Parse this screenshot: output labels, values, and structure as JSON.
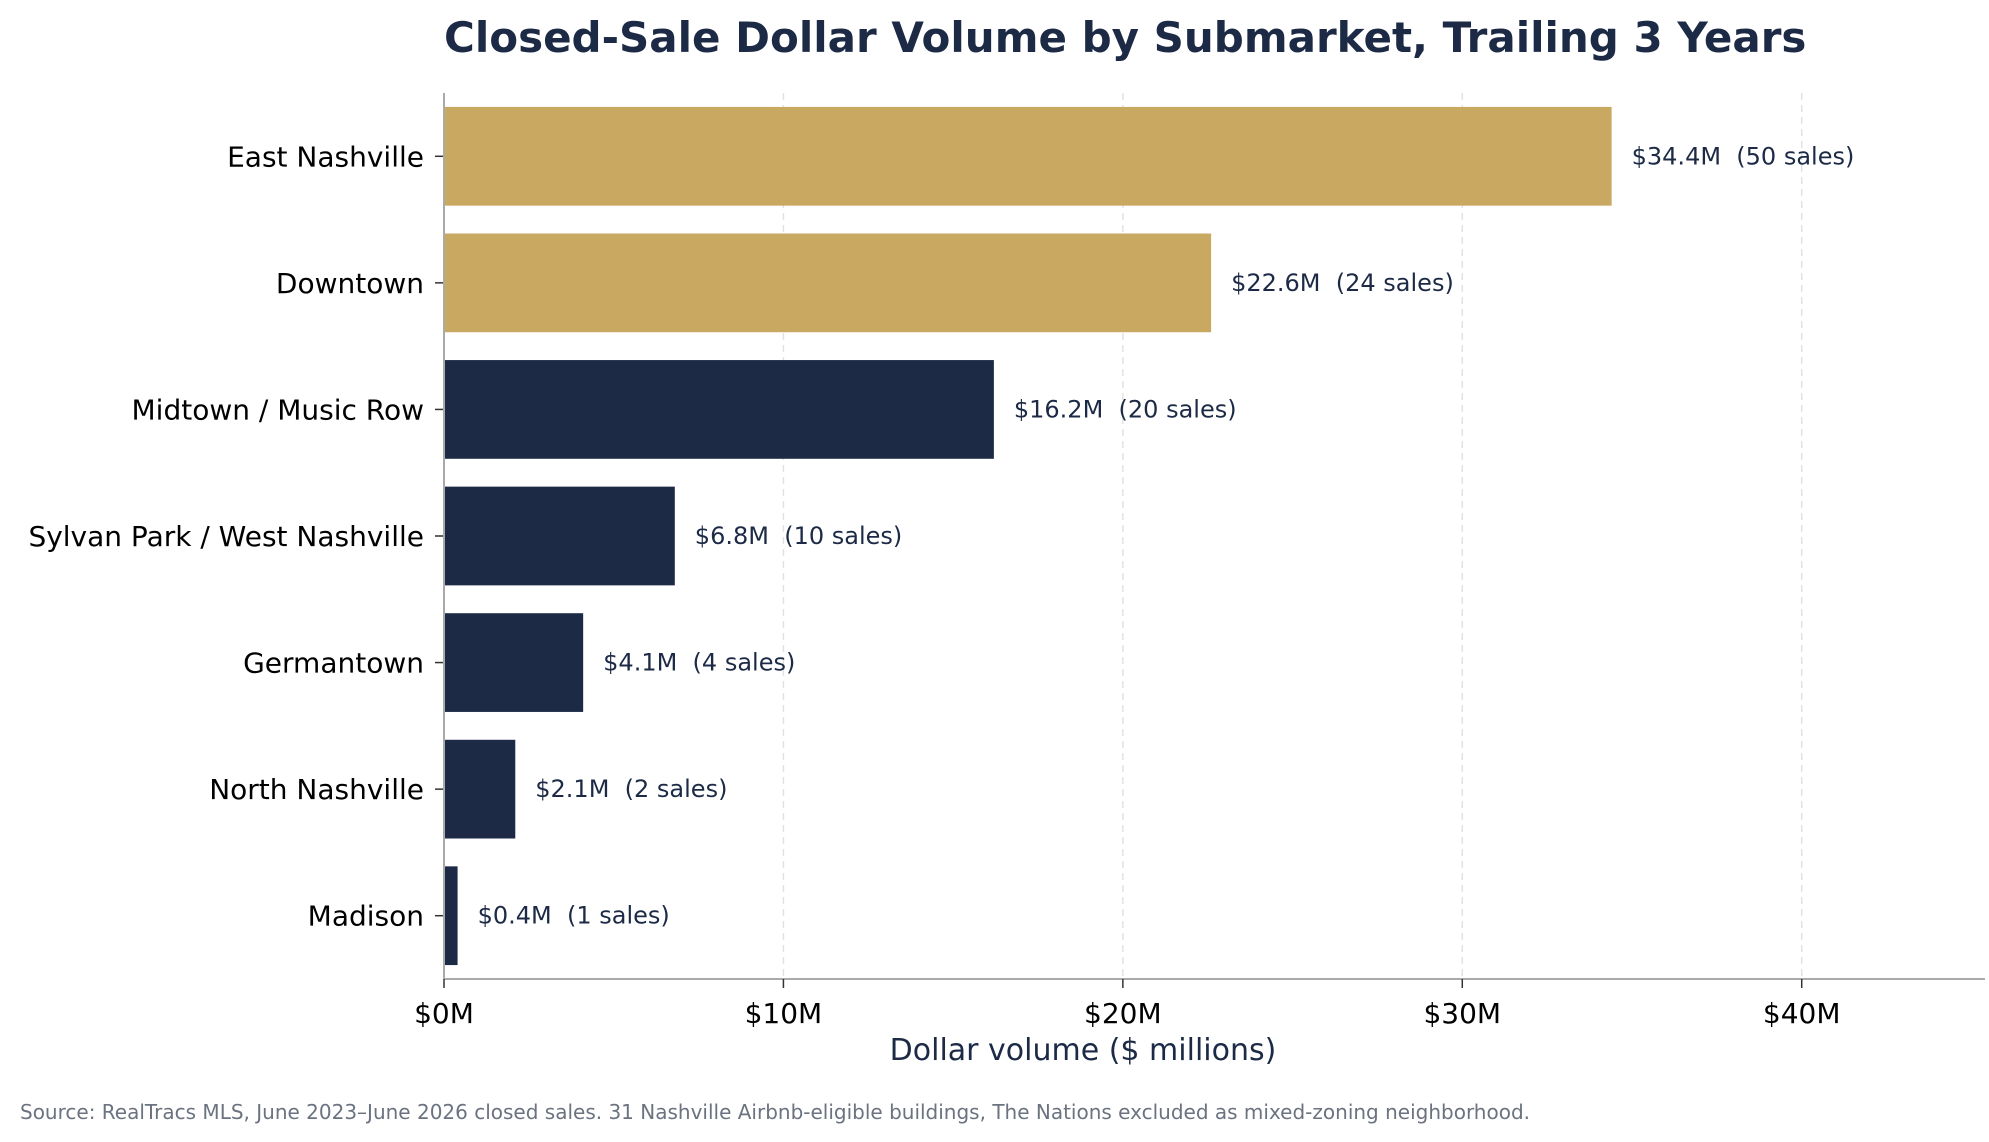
{
  "chart_data": {
    "type": "bar",
    "orientation": "horizontal",
    "title": "Closed-Sale Dollar Volume by Submarket, Trailing 3 Years",
    "xlabel": "Dollar volume ($ millions)",
    "ylabel": "",
    "xlim": [
      0,
      45.4
    ],
    "x_ticks": [
      0,
      10,
      20,
      30,
      40
    ],
    "x_tick_labels": [
      "$0M",
      "$10M",
      "$20M",
      "$30M",
      "$40M"
    ],
    "grid": "vertical dashed",
    "categories": [
      "East Nashville",
      "Downtown",
      "Midtown / Music Row",
      "Sylvan Park / West Nashville",
      "Germantown",
      "North Nashville",
      "Madison"
    ],
    "values": [
      34.4,
      22.6,
      16.2,
      6.8,
      4.1,
      2.1,
      0.4
    ],
    "sales": [
      50,
      24,
      20,
      10,
      4,
      2,
      1
    ],
    "data_labels": [
      "$34.4M  (50 sales)",
      "$22.6M  (24 sales)",
      "$16.2M  (20 sales)",
      "$6.8M  (10 sales)",
      "$4.1M  (4 sales)",
      "$2.1M  (2 sales)",
      "$0.4M  (1 sales)"
    ],
    "bar_colors": [
      "#c9a862",
      "#c9a862",
      "#1c2a46",
      "#1c2a46",
      "#1c2a46",
      "#1c2a46",
      "#1c2a46"
    ],
    "source": "Source: RealTracs MLS, June 2023–June 2026 closed sales. 31 Nashville Airbnb-eligible buildings, The Nations excluded as mixed-zoning neighborhood."
  }
}
